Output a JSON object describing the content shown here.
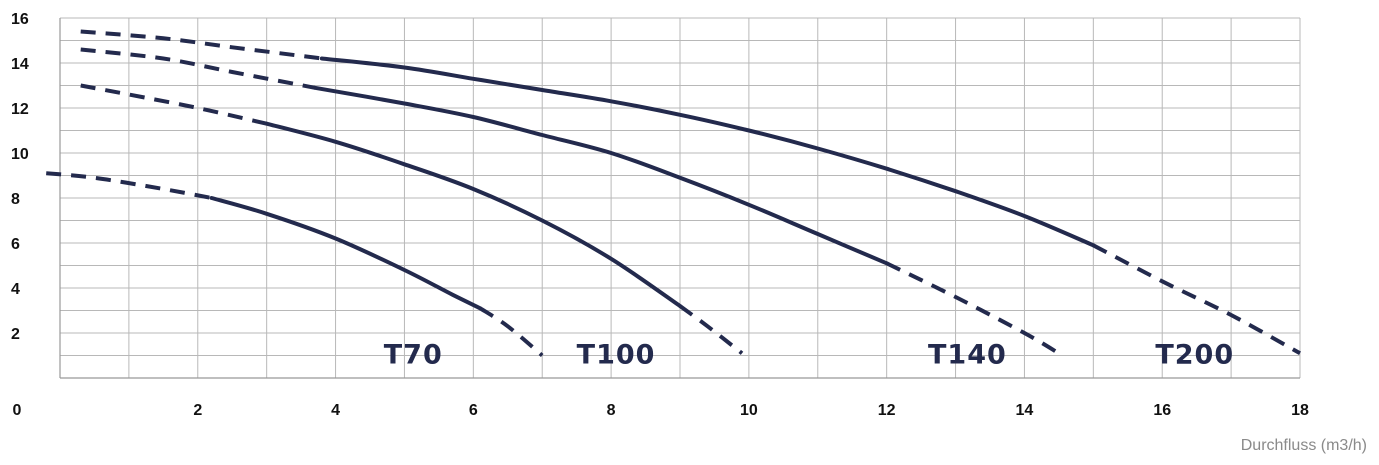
{
  "chart_data": {
    "type": "line",
    "title": "",
    "xlabel": "Durchfluss (m3/h)",
    "ylabel": "",
    "xlim": [
      0,
      18
    ],
    "ylim": [
      0,
      16
    ],
    "grid": true,
    "x_ticks": [
      0,
      2,
      4,
      6,
      8,
      10,
      12,
      14,
      16,
      18
    ],
    "y_ticks": [
      2,
      4,
      6,
      8,
      10,
      12,
      14,
      16
    ],
    "colors": {
      "curve": "#232a4d",
      "grid": "#b8b8b8",
      "axis": "#999999"
    },
    "series": [
      {
        "name": "T70",
        "label_pos": [
          4.7,
          1.1
        ],
        "dashed_start": [
          [
            -0.2,
            9.1
          ],
          [
            0.5,
            8.9
          ],
          [
            1.5,
            8.4
          ],
          [
            2.2,
            8.0
          ]
        ],
        "solid": [
          [
            2.2,
            8.0
          ],
          [
            3.0,
            7.3
          ],
          [
            4.0,
            6.2
          ],
          [
            5.0,
            4.8
          ],
          [
            5.7,
            3.7
          ],
          [
            6.1,
            3.1
          ]
        ],
        "dashed_end": [
          [
            6.1,
            3.1
          ],
          [
            6.5,
            2.3
          ],
          [
            7.0,
            1.0
          ]
        ]
      },
      {
        "name": "T100",
        "label_pos": [
          7.5,
          1.1
        ],
        "dashed_start": [
          [
            0.3,
            13.0
          ],
          [
            1.0,
            12.6
          ],
          [
            2.0,
            12.0
          ],
          [
            3.0,
            11.3
          ]
        ],
        "solid": [
          [
            3.0,
            11.3
          ],
          [
            4.0,
            10.5
          ],
          [
            5.0,
            9.5
          ],
          [
            6.0,
            8.4
          ],
          [
            7.0,
            7.0
          ],
          [
            8.0,
            5.3
          ],
          [
            9.0,
            3.2
          ]
        ],
        "dashed_end": [
          [
            9.0,
            3.2
          ],
          [
            9.4,
            2.3
          ],
          [
            9.9,
            1.1
          ]
        ]
      },
      {
        "name": "T140",
        "label_pos": [
          12.6,
          1.1
        ],
        "dashed_start": [
          [
            0.3,
            14.6
          ],
          [
            1.5,
            14.2
          ],
          [
            2.5,
            13.6
          ],
          [
            3.7,
            12.9
          ]
        ],
        "solid": [
          [
            3.7,
            12.9
          ],
          [
            5.0,
            12.2
          ],
          [
            6.0,
            11.6
          ],
          [
            7.0,
            10.8
          ],
          [
            8.0,
            10.0
          ],
          [
            9.0,
            8.9
          ],
          [
            10.0,
            7.7
          ],
          [
            11.0,
            6.4
          ],
          [
            12.0,
            5.1
          ]
        ],
        "dashed_end": [
          [
            12.0,
            5.1
          ],
          [
            13.0,
            3.6
          ],
          [
            14.0,
            2.0
          ],
          [
            14.5,
            1.1
          ]
        ]
      },
      {
        "name": "T200",
        "label_pos": [
          15.9,
          1.1
        ],
        "dashed_start": [
          [
            0.3,
            15.4
          ],
          [
            1.5,
            15.1
          ],
          [
            2.5,
            14.7
          ],
          [
            3.8,
            14.2
          ]
        ],
        "solid": [
          [
            3.8,
            14.2
          ],
          [
            5.0,
            13.8
          ],
          [
            6.0,
            13.3
          ],
          [
            7.0,
            12.8
          ],
          [
            8.0,
            12.3
          ],
          [
            9.0,
            11.7
          ],
          [
            10.0,
            11.0
          ],
          [
            11.0,
            10.2
          ],
          [
            12.0,
            9.3
          ],
          [
            13.0,
            8.3
          ],
          [
            14.0,
            7.2
          ],
          [
            15.0,
            5.9
          ]
        ],
        "dashed_end": [
          [
            15.0,
            5.9
          ],
          [
            16.0,
            4.3
          ],
          [
            17.0,
            2.8
          ],
          [
            18.0,
            1.1
          ]
        ]
      }
    ]
  }
}
